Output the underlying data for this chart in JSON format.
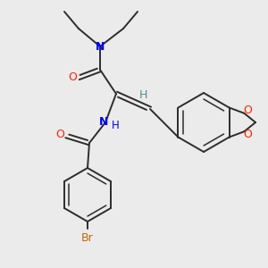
{
  "background_color": "#ebebeb",
  "bond_color": "#2c2c2c",
  "n_color": "#0000ff",
  "o_color": "#ff2200",
  "br_color": "#cc6600",
  "h_color": "#4a8f8f",
  "figsize": [
    3.0,
    3.0
  ],
  "dpi": 100,
  "xlim": [
    0,
    300
  ],
  "ylim": [
    0,
    300
  ]
}
